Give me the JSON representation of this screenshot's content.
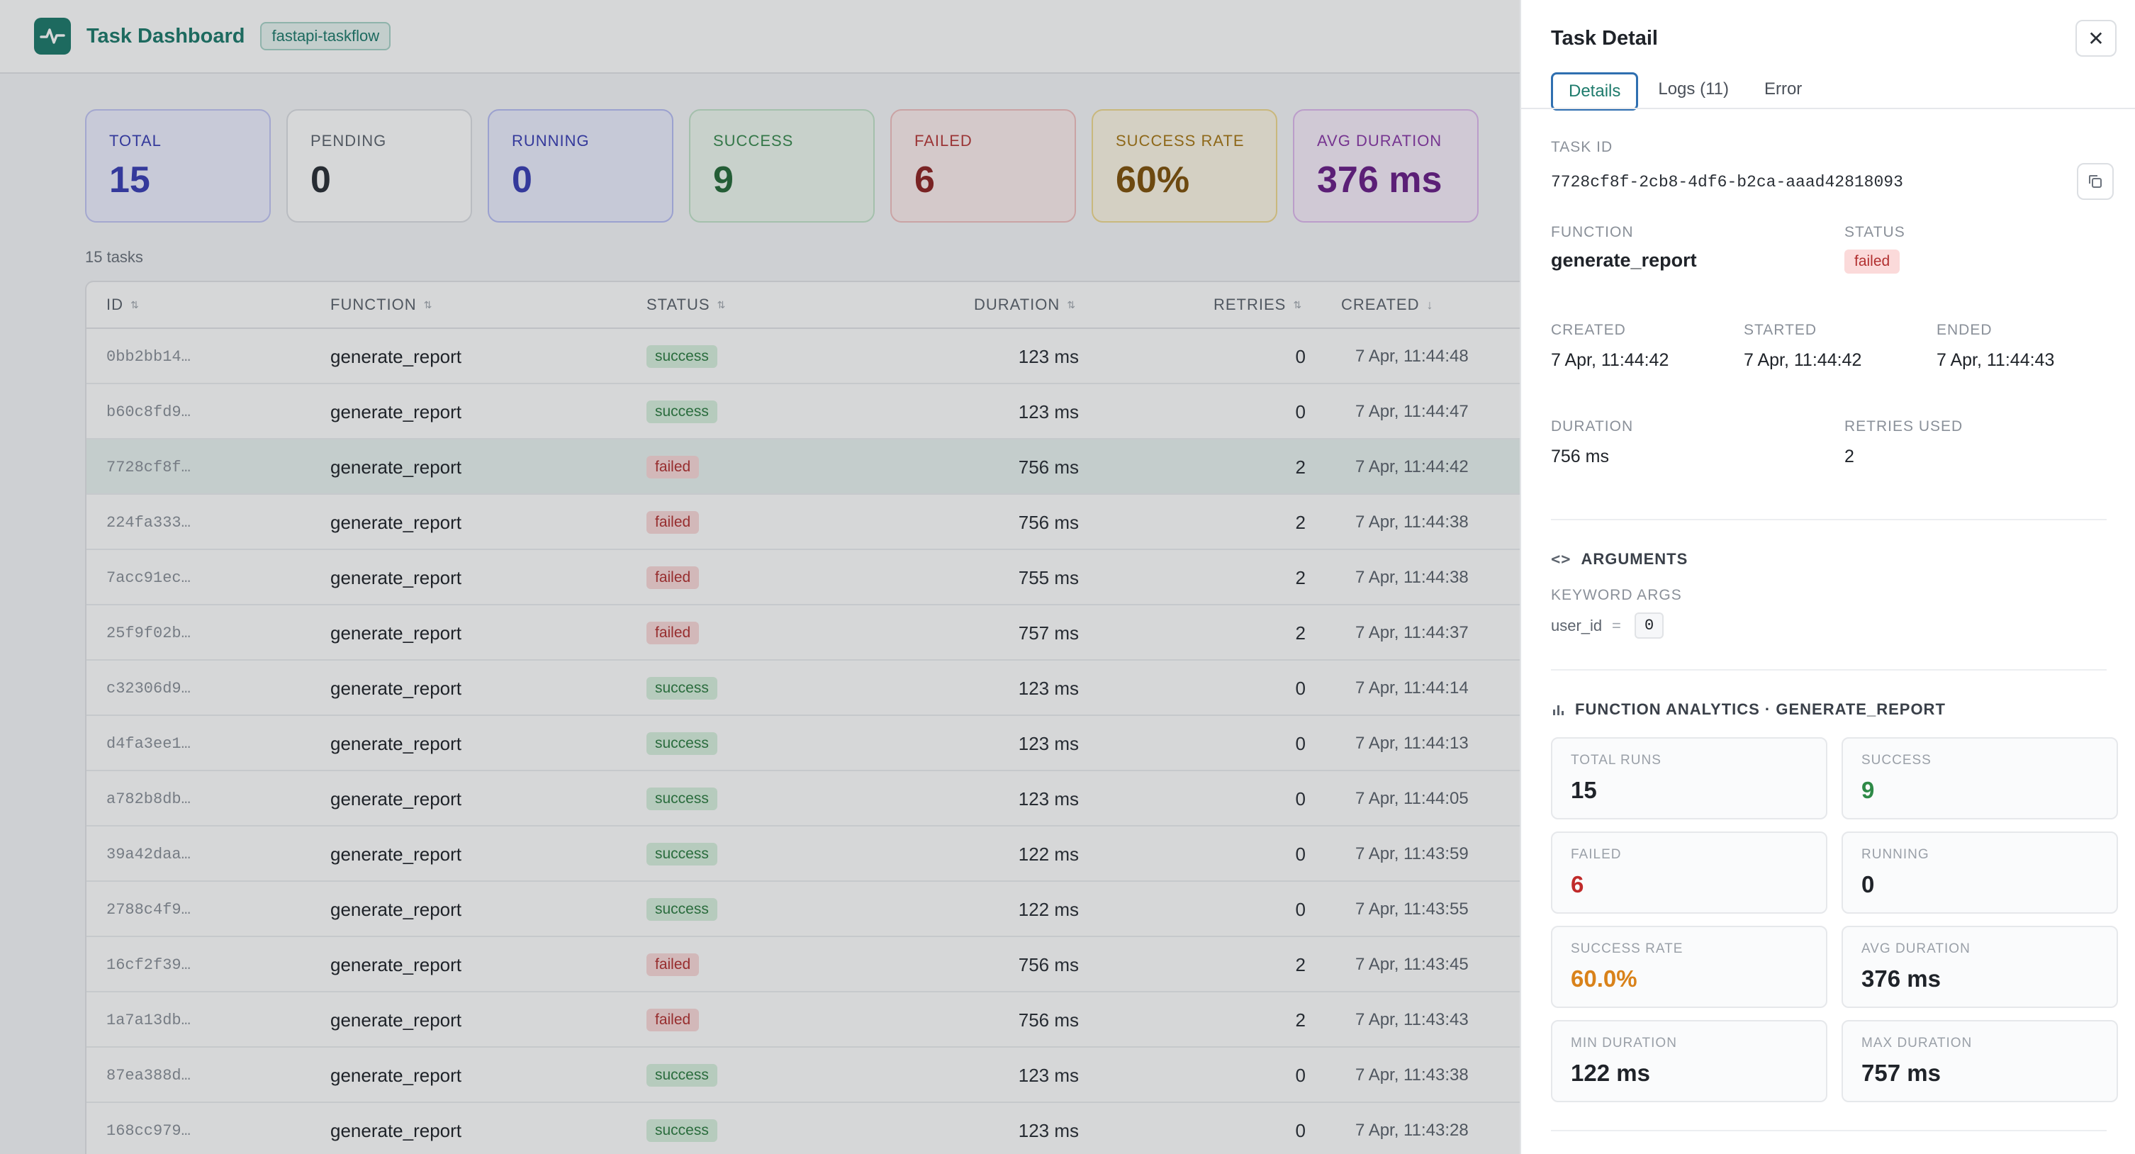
{
  "header": {
    "title": "Task Dashboard",
    "project": "fastapi-taskflow"
  },
  "stats": [
    {
      "key": "total",
      "label": "TOTAL",
      "value": "15"
    },
    {
      "key": "pending",
      "label": "PENDING",
      "value": "0"
    },
    {
      "key": "running",
      "label": "RUNNING",
      "value": "0"
    },
    {
      "key": "success",
      "label": "SUCCESS",
      "value": "9"
    },
    {
      "key": "failed",
      "label": "FAILED",
      "value": "6"
    },
    {
      "key": "rate",
      "label": "SUCCESS RATE",
      "value": "60%"
    },
    {
      "key": "avg",
      "label": "AVG DURATION",
      "value": "376 ms"
    }
  ],
  "task_count": "15 tasks",
  "table": {
    "headers": {
      "id": "ID",
      "function": "FUNCTION",
      "status": "STATUS",
      "duration": "DURATION",
      "retries": "RETRIES",
      "created": "CREATED"
    },
    "rows": [
      {
        "id": "0bb2bb14…",
        "function": "generate_report",
        "status": "success",
        "duration": "123 ms",
        "retries": "0",
        "created": "7 Apr, 11:44:48"
      },
      {
        "id": "b60c8fd9…",
        "function": "generate_report",
        "status": "success",
        "duration": "123 ms",
        "retries": "0",
        "created": "7 Apr, 11:44:47"
      },
      {
        "id": "7728cf8f…",
        "function": "generate_report",
        "status": "failed",
        "duration": "756 ms",
        "retries": "2",
        "created": "7 Apr, 11:44:42",
        "selected": true
      },
      {
        "id": "224fa333…",
        "function": "generate_report",
        "status": "failed",
        "duration": "756 ms",
        "retries": "2",
        "created": "7 Apr, 11:44:38"
      },
      {
        "id": "7acc91ec…",
        "function": "generate_report",
        "status": "failed",
        "duration": "755 ms",
        "retries": "2",
        "created": "7 Apr, 11:44:38"
      },
      {
        "id": "25f9f02b…",
        "function": "generate_report",
        "status": "failed",
        "duration": "757 ms",
        "retries": "2",
        "created": "7 Apr, 11:44:37"
      },
      {
        "id": "c32306d9…",
        "function": "generate_report",
        "status": "success",
        "duration": "123 ms",
        "retries": "0",
        "created": "7 Apr, 11:44:14"
      },
      {
        "id": "d4fa3ee1…",
        "function": "generate_report",
        "status": "success",
        "duration": "123 ms",
        "retries": "0",
        "created": "7 Apr, 11:44:13"
      },
      {
        "id": "a782b8db…",
        "function": "generate_report",
        "status": "success",
        "duration": "123 ms",
        "retries": "0",
        "created": "7 Apr, 11:44:05"
      },
      {
        "id": "39a42daa…",
        "function": "generate_report",
        "status": "success",
        "duration": "122 ms",
        "retries": "0",
        "created": "7 Apr, 11:43:59"
      },
      {
        "id": "2788c4f9…",
        "function": "generate_report",
        "status": "success",
        "duration": "122 ms",
        "retries": "0",
        "created": "7 Apr, 11:43:55"
      },
      {
        "id": "16cf2f39…",
        "function": "generate_report",
        "status": "failed",
        "duration": "756 ms",
        "retries": "2",
        "created": "7 Apr, 11:43:45"
      },
      {
        "id": "1a7a13db…",
        "function": "generate_report",
        "status": "failed",
        "duration": "756 ms",
        "retries": "2",
        "created": "7 Apr, 11:43:43"
      },
      {
        "id": "87ea388d…",
        "function": "generate_report",
        "status": "success",
        "duration": "123 ms",
        "retries": "0",
        "created": "7 Apr, 11:43:38"
      },
      {
        "id": "168cc979…",
        "function": "generate_report",
        "status": "success",
        "duration": "123 ms",
        "retries": "0",
        "created": "7 Apr, 11:43:28"
      }
    ]
  },
  "detail": {
    "title": "Task Detail",
    "tabs": [
      "Details",
      "Logs (11)",
      "Error"
    ],
    "task_id_label": "TASK ID",
    "task_id": "7728cf8f-2cb8-4df6-b2ca-aaad42818093",
    "function_label": "FUNCTION",
    "function": "generate_report",
    "status_label": "STATUS",
    "status": "failed",
    "created_label": "CREATED",
    "created": "7 Apr, 11:44:42",
    "started_label": "STARTED",
    "started": "7 Apr, 11:44:42",
    "ended_label": "ENDED",
    "ended": "7 Apr, 11:44:43",
    "duration_label": "DURATION",
    "duration": "756 ms",
    "retries_label": "RETRIES USED",
    "retries": "2",
    "arguments_heading": "ARGUMENTS",
    "kwargs_label": "KEYWORD ARGS",
    "arg_key": "user_id",
    "arg_eq": "=",
    "arg_value": "0",
    "analytics_heading": "FUNCTION ANALYTICS · GENERATE_REPORT",
    "analytics": [
      {
        "label": "TOTAL RUNS",
        "value": "15",
        "color": "#1f2329"
      },
      {
        "label": "SUCCESS",
        "value": "9",
        "color": "#2e8a47"
      },
      {
        "label": "FAILED",
        "value": "6",
        "color": "#c02a2a"
      },
      {
        "label": "RUNNING",
        "value": "0",
        "color": "#1f2329"
      },
      {
        "label": "SUCCESS RATE",
        "value": "60.0%",
        "color": "#d9821a"
      },
      {
        "label": "AVG DURATION",
        "value": "376 ms",
        "color": "#1f2329"
      },
      {
        "label": "MIN DURATION",
        "value": "122 ms",
        "color": "#1f2329"
      },
      {
        "label": "MAX DURATION",
        "value": "757 ms",
        "color": "#1f2329"
      }
    ]
  }
}
